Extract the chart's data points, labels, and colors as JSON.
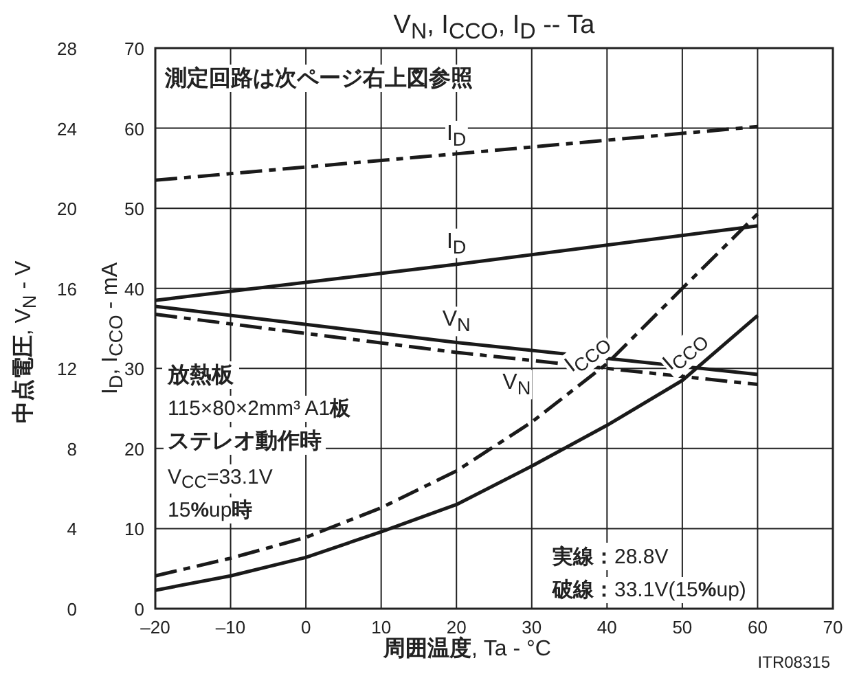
{
  "chart_data": {
    "type": "line",
    "title": "V$_{N}$, I$_{CCO}$, I$_{D}$ -- Ta",
    "xlabel": "周囲温度, Ta - °C",
    "ylabel": "I$_{D}$, I$_{CCO}$ - mA",
    "y2label": "中点電圧, V$_{N}$ - V",
    "xlim": [
      -20,
      70
    ],
    "xticks": [
      {
        "value": -20,
        "label": "–20"
      },
      {
        "value": -10,
        "label": "–10"
      },
      0,
      10,
      20,
      30,
      40,
      50,
      60,
      70
    ],
    "ylim": [
      0,
      70
    ],
    "yticks": [
      0,
      10,
      20,
      30,
      40,
      50,
      60,
      70
    ],
    "y2lim": [
      0,
      28
    ],
    "y2ticks": [
      0,
      4,
      8,
      12,
      16,
      20,
      24,
      28
    ],
    "grid": true,
    "series": [
      {
        "name": "I$_{D}$",
        "color": "#1a1a1a",
        "line_style": "dashed",
        "x": [
          -20,
          20,
          60
        ],
        "values": [
          53.5,
          56.8,
          60.2
        ]
      },
      {
        "name": "I$_{D}$",
        "color": "#1a1a1a",
        "line_style": "solid",
        "x": [
          -20,
          20,
          60
        ],
        "values": [
          38.5,
          43.0,
          47.8
        ]
      },
      {
        "name": "V$_{N}$",
        "color": "#1a1a1a",
        "line_style": "solid",
        "axis": "y2",
        "x": [
          -20,
          20,
          60
        ],
        "values": [
          15.1,
          13.3,
          11.7
        ]
      },
      {
        "name": "V$_{N}$",
        "color": "#1a1a1a",
        "line_style": "dashed",
        "axis": "y2",
        "x": [
          -20,
          20,
          60
        ],
        "values": [
          14.7,
          12.8,
          11.2
        ]
      },
      {
        "name": "I$_{CCO}$",
        "color": "#1a1a1a",
        "line_style": "dashed",
        "x": [
          -20,
          -10,
          0,
          10,
          20,
          30,
          40,
          50,
          60
        ],
        "values": [
          4.1,
          6.3,
          8.9,
          12.6,
          17.2,
          23.3,
          30.6,
          40.0,
          49.3
        ]
      },
      {
        "name": "I$_{CCO}$",
        "color": "#1a1a1a",
        "line_style": "solid",
        "x": [
          -20,
          -10,
          0,
          10,
          20,
          30,
          40,
          50,
          60
        ],
        "values": [
          2.3,
          4.1,
          6.4,
          9.6,
          13.0,
          17.8,
          22.9,
          28.5,
          36.6
        ]
      }
    ],
    "annotations": [
      "測定回路は次ページ右上図参照",
      "放熱板",
      "115×80×2mm³ A1板",
      "ステレオ動作時",
      "V$_{CC}$=33.1V",
      "15%up時",
      "実線：28.8V",
      "破線：33.1V(15%up)",
      "ITR08315"
    ]
  }
}
